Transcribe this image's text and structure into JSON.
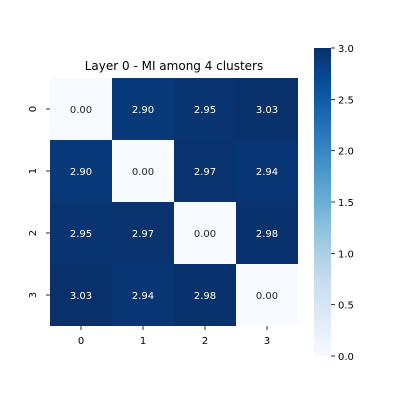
{
  "chart_data": {
    "type": "heatmap",
    "title": "Layer 0 - MI among 4 clusters",
    "x_categories": [
      "0",
      "1",
      "2",
      "3"
    ],
    "y_categories": [
      "0",
      "1",
      "2",
      "3"
    ],
    "values": [
      [
        0.0,
        2.9,
        2.95,
        3.03
      ],
      [
        2.9,
        0.0,
        2.97,
        2.94
      ],
      [
        2.95,
        2.97,
        0.0,
        2.98
      ],
      [
        3.03,
        2.94,
        2.98,
        0.0
      ]
    ],
    "value_format_decimals": 2,
    "colormap": "Blues",
    "color_range": [
      0.0,
      3.0
    ],
    "colorbar": {
      "ticks": [
        "0.0",
        "0.5",
        "1.0",
        "1.5",
        "2.0",
        "2.5",
        "3.0"
      ],
      "placement": "right"
    },
    "colors": {
      "low": "#f7fbff",
      "high": "#08306b",
      "text_dark": "#262626",
      "text_light": "#ffffff"
    }
  }
}
